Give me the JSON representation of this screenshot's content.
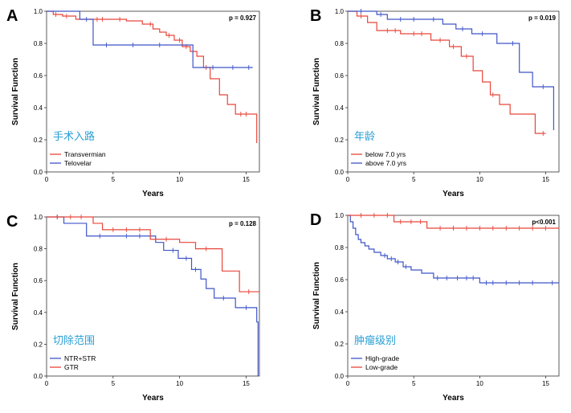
{
  "chart_data": [
    {
      "type": "line",
      "panel": "A",
      "annotation": "手术入路",
      "pvalue": "p = 0.927",
      "xlabel": "Years",
      "ylabel": "Survival Function",
      "xlim": [
        0,
        16
      ],
      "ylim": [
        0,
        1.0
      ],
      "xticks": [
        "0",
        "5",
        "10",
        "15"
      ],
      "yticks": [
        "0.0",
        "0.2",
        "0.4",
        "0.6",
        "0.8",
        "1.0"
      ],
      "legend_position": "bottom-left",
      "series": [
        {
          "name": "Transvermian",
          "color": "#e8463a",
          "x": [
            0,
            0.5,
            1.2,
            2.2,
            3.5,
            6.0,
            7.2,
            8.0,
            8.5,
            9.0,
            9.6,
            10.2,
            10.8,
            11.3,
            11.8,
            12.3,
            13.0,
            13.6,
            14.2,
            15.5,
            15.8
          ],
          "y": [
            1.0,
            0.98,
            0.97,
            0.95,
            0.95,
            0.94,
            0.92,
            0.89,
            0.87,
            0.85,
            0.82,
            0.78,
            0.75,
            0.72,
            0.65,
            0.58,
            0.48,
            0.42,
            0.36,
            0.36,
            0.18
          ],
          "censor_x": [
            0.7,
            1.5,
            3.8,
            4.2,
            5.5,
            7.8,
            9.2,
            10.0,
            10.5,
            12.0,
            14.6,
            15.0
          ]
        },
        {
          "name": "Telovelar",
          "color": "#3f55c8",
          "x": [
            0,
            2.5,
            3.5,
            11.0,
            15.5
          ],
          "y": [
            1.0,
            0.95,
            0.79,
            0.65,
            0.65
          ],
          "censor_x": [
            3.0,
            4.5,
            6.5,
            8.5,
            12.5,
            14.0,
            15.2
          ]
        }
      ]
    },
    {
      "type": "line",
      "panel": "B",
      "annotation": "年龄",
      "pvalue": "p = 0.019",
      "xlabel": "Years",
      "ylabel": "Survival Function",
      "xlim": [
        0,
        16
      ],
      "ylim": [
        0,
        1.0
      ],
      "xticks": [
        "0",
        "5",
        "10",
        "15"
      ],
      "yticks": [
        "0.0",
        "0.2",
        "0.4",
        "0.6",
        "0.8",
        "1.0"
      ],
      "legend_position": "bottom-left",
      "series": [
        {
          "name": "below 7.0 yrs",
          "color": "#e8463a",
          "x": [
            0,
            0.7,
            1.5,
            2.2,
            4.0,
            6.3,
            7.7,
            8.6,
            9.5,
            10.2,
            10.8,
            11.5,
            12.3,
            14.2,
            15.0
          ],
          "y": [
            1.0,
            0.97,
            0.93,
            0.88,
            0.86,
            0.82,
            0.78,
            0.72,
            0.63,
            0.56,
            0.48,
            0.42,
            0.36,
            0.24,
            0.24
          ],
          "censor_x": [
            1.0,
            3.0,
            3.6,
            5.0,
            5.6,
            7.0,
            8.0,
            9.0,
            11.0,
            14.8
          ]
        },
        {
          "name": "above 7.0 yrs",
          "color": "#3f55c8",
          "x": [
            0,
            2.2,
            3.0,
            7.2,
            8.2,
            9.4,
            11.3,
            13.0,
            14.0,
            15.6
          ],
          "y": [
            1.0,
            0.98,
            0.95,
            0.92,
            0.89,
            0.86,
            0.8,
            0.62,
            0.53,
            0.26
          ],
          "censor_x": [
            1.0,
            2.5,
            4.0,
            5.0,
            6.5,
            8.7,
            10.2,
            12.5,
            14.8
          ]
        }
      ]
    },
    {
      "type": "line",
      "panel": "C",
      "annotation": "切除范围",
      "pvalue": "p = 0.128",
      "xlabel": "Years",
      "ylabel": "Survival Function",
      "xlim": [
        0,
        16
      ],
      "ylim": [
        0,
        1.0
      ],
      "xticks": [
        "0",
        "5",
        "10",
        "15"
      ],
      "yticks": [
        "0.0",
        "0.2",
        "0.4",
        "0.6",
        "0.8",
        "1.0"
      ],
      "legend_position": "bottom-left",
      "series": [
        {
          "name": "NTR+STR",
          "color": "#3f55c8",
          "x": [
            0,
            1.3,
            3.0,
            8.2,
            8.8,
            9.9,
            10.9,
            11.6,
            12.0,
            12.6,
            14.2,
            15.8,
            15.9
          ],
          "y": [
            1.0,
            0.96,
            0.88,
            0.84,
            0.79,
            0.74,
            0.67,
            0.61,
            0.55,
            0.49,
            0.43,
            0.34,
            0.0
          ],
          "censor_x": [
            0.8,
            4.0,
            6.0,
            7.0,
            9.5,
            10.5,
            11.2,
            13.3,
            15.0
          ]
        },
        {
          "name": "GTR",
          "color": "#e8463a",
          "x": [
            0,
            3.5,
            4.2,
            7.8,
            10.0,
            11.2,
            13.2,
            14.5,
            16.0
          ],
          "y": [
            1.0,
            0.96,
            0.92,
            0.86,
            0.84,
            0.8,
            0.66,
            0.53,
            0.53
          ],
          "censor_x": [
            0.8,
            1.8,
            2.6,
            5.0,
            6.0,
            7.0,
            9.0,
            12.0,
            15.2
          ]
        }
      ]
    },
    {
      "type": "line",
      "panel": "D",
      "annotation": "肿瘤级别",
      "pvalue": "p<0.001",
      "xlabel": "Years",
      "ylabel": "Survival Function",
      "xlim": [
        0,
        16
      ],
      "ylim": [
        0,
        1.0
      ],
      "xticks": [
        "0",
        "5",
        "10",
        "15"
      ],
      "yticks": [
        "0.0",
        "0.2",
        "0.4",
        "0.6",
        "0.8",
        "1.0"
      ],
      "legend_position": "bottom-left",
      "series": [
        {
          "name": "High-grade",
          "color": "#3f55c8",
          "x": [
            0,
            0.2,
            0.4,
            0.6,
            0.8,
            1.0,
            1.3,
            1.6,
            2.0,
            2.5,
            3.0,
            3.6,
            4.2,
            4.8,
            5.6,
            6.5,
            8.0,
            10.0,
            16.0
          ],
          "y": [
            1.0,
            0.96,
            0.92,
            0.88,
            0.85,
            0.83,
            0.81,
            0.79,
            0.77,
            0.75,
            0.73,
            0.71,
            0.68,
            0.66,
            0.64,
            0.61,
            0.61,
            0.58,
            0.58
          ],
          "censor_x": [
            2.8,
            3.3,
            3.8,
            4.4,
            6.8,
            7.5,
            8.3,
            9.0,
            9.5,
            10.5,
            11.0,
            12.0,
            13.0,
            14.0,
            15.5
          ]
        },
        {
          "name": "Low-grade",
          "color": "#e8463a",
          "x": [
            0,
            3.5,
            6.0,
            16.0
          ],
          "y": [
            1.0,
            0.96,
            0.92,
            0.92
          ],
          "censor_x": [
            1.0,
            2.0,
            3.0,
            4.0,
            4.8,
            5.5,
            7.0,
            8.0,
            9.0,
            10.0,
            11.0,
            12.0,
            13.0,
            14.0,
            15.0
          ]
        }
      ]
    }
  ]
}
